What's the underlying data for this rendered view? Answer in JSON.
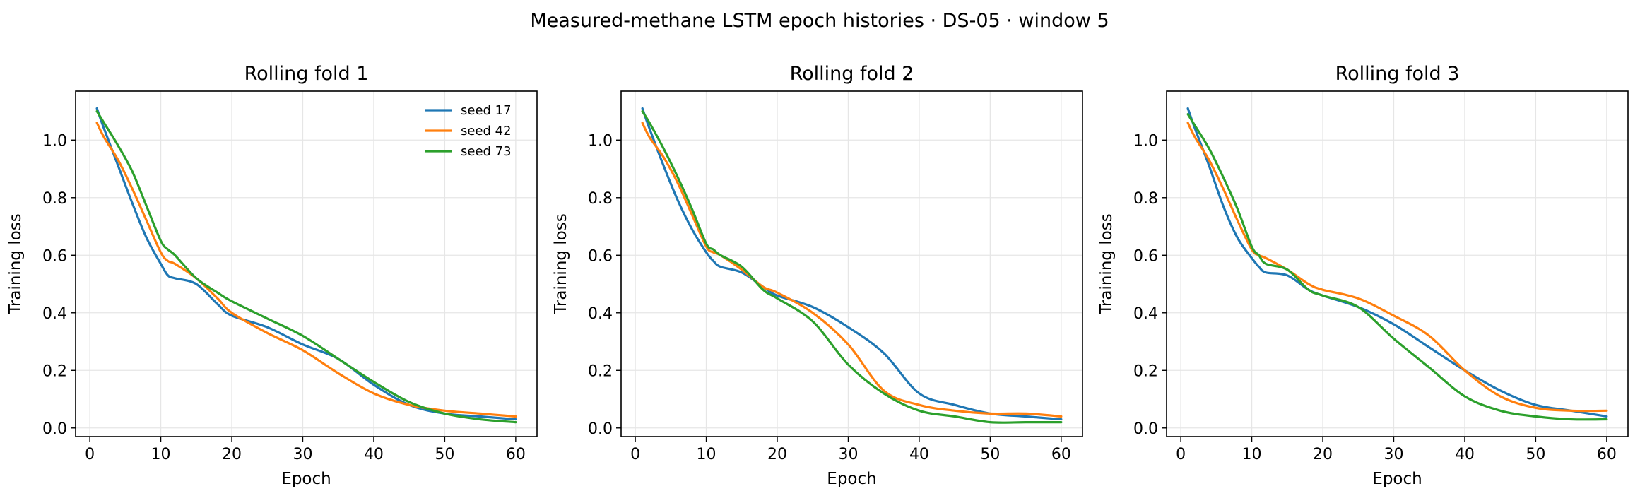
{
  "figure": {
    "suptitle": "Measured-methane LSTM epoch histories · DS-05 · window 5"
  },
  "colors": {
    "seed_17": "#1f77b4",
    "seed_42": "#ff7f0e",
    "seed_73": "#2ca02c",
    "grid": "#e6e6e6",
    "axes": "#000000"
  },
  "chart_data": [
    {
      "type": "line",
      "title": "Rolling fold 1",
      "xlabel": "Epoch",
      "ylabel": "Training loss",
      "xlim": [
        -2,
        63
      ],
      "ylim": [
        -0.03,
        1.17
      ],
      "xticks": [
        0,
        10,
        20,
        30,
        40,
        50,
        60
      ],
      "yticks": [
        0.0,
        0.2,
        0.4,
        0.6,
        0.8,
        1.0
      ],
      "ytick_labels": [
        "0.0",
        "0.2",
        "0.4",
        "0.6",
        "0.8",
        "1.0"
      ],
      "grid": true,
      "legend": "top-right",
      "x": [
        1,
        2,
        4,
        6,
        8,
        10,
        11,
        12,
        15,
        18,
        20,
        25,
        30,
        35,
        40,
        45,
        50,
        55,
        60
      ],
      "series": [
        {
          "name": "seed 17",
          "color": "#1f77b4",
          "values": [
            1.11,
            1.04,
            0.91,
            0.78,
            0.66,
            0.57,
            0.53,
            0.52,
            0.5,
            0.43,
            0.39,
            0.35,
            0.29,
            0.24,
            0.15,
            0.08,
            0.05,
            0.04,
            0.03
          ]
        },
        {
          "name": "seed 42",
          "color": "#ff7f0e",
          "values": [
            1.06,
            1.01,
            0.93,
            0.83,
            0.72,
            0.61,
            0.58,
            0.57,
            0.52,
            0.45,
            0.4,
            0.33,
            0.27,
            0.19,
            0.12,
            0.08,
            0.06,
            0.05,
            0.04
          ]
        },
        {
          "name": "seed 73",
          "color": "#2ca02c",
          "values": [
            1.1,
            1.06,
            0.98,
            0.89,
            0.77,
            0.65,
            0.62,
            0.6,
            0.52,
            0.47,
            0.44,
            0.38,
            0.32,
            0.24,
            0.16,
            0.09,
            0.05,
            0.03,
            0.02
          ]
        }
      ]
    },
    {
      "type": "line",
      "title": "Rolling fold 2",
      "xlabel": "Epoch",
      "ylabel": "Training loss",
      "xlim": [
        -2,
        63
      ],
      "ylim": [
        -0.03,
        1.17
      ],
      "xticks": [
        0,
        10,
        20,
        30,
        40,
        50,
        60
      ],
      "yticks": [
        0.0,
        0.2,
        0.4,
        0.6,
        0.8,
        1.0
      ],
      "ytick_labels": [
        "0.0",
        "0.2",
        "0.4",
        "0.6",
        "0.8",
        "1.0"
      ],
      "grid": true,
      "legend": "",
      "x": [
        1,
        2,
        4,
        6,
        8,
        10,
        11,
        12,
        15,
        18,
        20,
        25,
        30,
        35,
        40,
        45,
        50,
        55,
        60
      ],
      "series": [
        {
          "name": "seed 17",
          "color": "#1f77b4",
          "values": [
            1.11,
            1.04,
            0.91,
            0.79,
            0.69,
            0.61,
            0.58,
            0.56,
            0.54,
            0.49,
            0.46,
            0.42,
            0.35,
            0.26,
            0.12,
            0.08,
            0.05,
            0.04,
            0.03
          ]
        },
        {
          "name": "seed 42",
          "color": "#ff7f0e",
          "values": [
            1.06,
            1.01,
            0.94,
            0.85,
            0.74,
            0.63,
            0.61,
            0.6,
            0.55,
            0.49,
            0.47,
            0.4,
            0.29,
            0.13,
            0.08,
            0.06,
            0.05,
            0.05,
            0.04
          ]
        },
        {
          "name": "seed 73",
          "color": "#2ca02c",
          "values": [
            1.1,
            1.06,
            0.97,
            0.87,
            0.76,
            0.64,
            0.62,
            0.6,
            0.56,
            0.48,
            0.45,
            0.37,
            0.22,
            0.12,
            0.06,
            0.04,
            0.02,
            0.02,
            0.02
          ]
        }
      ]
    },
    {
      "type": "line",
      "title": "Rolling fold 3",
      "xlabel": "Epoch",
      "ylabel": "Training loss",
      "xlim": [
        -2,
        63
      ],
      "ylim": [
        -0.03,
        1.17
      ],
      "xticks": [
        0,
        10,
        20,
        30,
        40,
        50,
        60
      ],
      "yticks": [
        0.0,
        0.2,
        0.4,
        0.6,
        0.8,
        1.0
      ],
      "ytick_labels": [
        "0.0",
        "0.2",
        "0.4",
        "0.6",
        "0.8",
        "1.0"
      ],
      "grid": true,
      "legend": "",
      "x": [
        1,
        2,
        4,
        6,
        8,
        10,
        11,
        12,
        15,
        18,
        20,
        25,
        30,
        35,
        40,
        45,
        50,
        55,
        60
      ],
      "series": [
        {
          "name": "seed 17",
          "color": "#1f77b4",
          "values": [
            1.11,
            1.04,
            0.91,
            0.77,
            0.66,
            0.59,
            0.56,
            0.54,
            0.53,
            0.48,
            0.46,
            0.42,
            0.36,
            0.28,
            0.2,
            0.13,
            0.08,
            0.06,
            0.04
          ]
        },
        {
          "name": "seed 42",
          "color": "#ff7f0e",
          "values": [
            1.06,
            1.01,
            0.93,
            0.83,
            0.72,
            0.62,
            0.6,
            0.59,
            0.55,
            0.5,
            0.48,
            0.45,
            0.39,
            0.32,
            0.2,
            0.11,
            0.07,
            0.06,
            0.06
          ]
        },
        {
          "name": "seed 73",
          "color": "#2ca02c",
          "values": [
            1.09,
            1.05,
            0.97,
            0.87,
            0.76,
            0.63,
            0.6,
            0.57,
            0.55,
            0.48,
            0.46,
            0.42,
            0.31,
            0.21,
            0.11,
            0.06,
            0.04,
            0.03,
            0.03
          ]
        }
      ]
    }
  ]
}
